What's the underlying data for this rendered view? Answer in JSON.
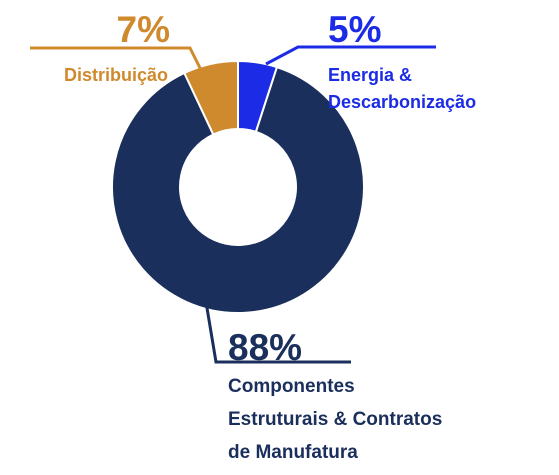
{
  "chart_data": {
    "type": "donut",
    "categories": [
      "Energia &\nDescarbonização",
      "Componentes\nEstruturais & Contratos\nde Manufatura",
      "Distribuição"
    ],
    "values": [
      5,
      88,
      7
    ],
    "value_labels": [
      "5%",
      "88%",
      "7%"
    ],
    "colors": [
      "#1b2be6",
      "#1b2f5c",
      "#d08a2e"
    ]
  }
}
